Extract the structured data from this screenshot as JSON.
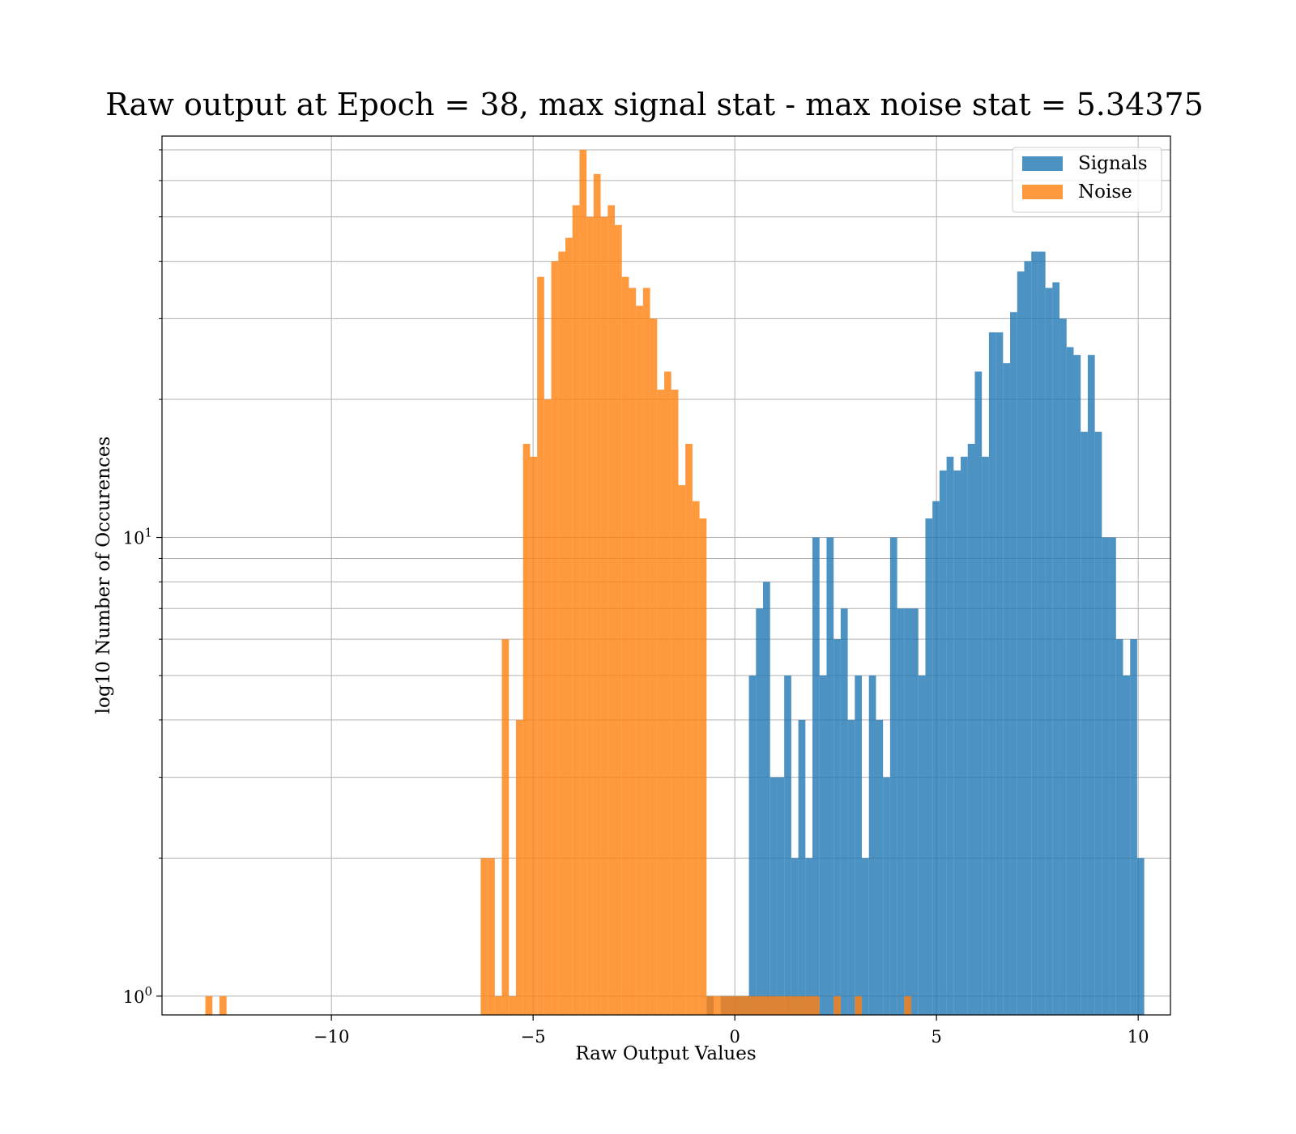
{
  "chart_data": {
    "type": "bar",
    "subtype": "histogram",
    "title": "Raw output at Epoch = 38, max signal stat - max noise stat = 5.34375",
    "xlabel": "Raw Output Values",
    "ylabel": "log10 Number of Occurences",
    "xlim": [
      -14.2,
      10.8
    ],
    "ylim": [
      0.91,
      75
    ],
    "yscale": "log",
    "grid": true,
    "legend_position": "upper right",
    "x_ticks": [
      {
        "value": -10,
        "label": "−10"
      },
      {
        "value": -5,
        "label": "−5"
      },
      {
        "value": 0,
        "label": "0"
      },
      {
        "value": 5,
        "label": "5"
      },
      {
        "value": 10,
        "label": "10"
      }
    ],
    "y_ticks": [
      {
        "value": 1,
        "base": "10",
        "exp": "0"
      },
      {
        "value": 10,
        "base": "10",
        "exp": "1"
      }
    ],
    "series": [
      {
        "name": "Signals",
        "color": "#1f77b4",
        "opacity": 0.8,
        "bin_width": 0.175,
        "bins": [
          [
            -0.7,
            1
          ],
          [
            -0.35,
            1
          ],
          [
            -0.175,
            1
          ],
          [
            0,
            1
          ],
          [
            0.175,
            1
          ],
          [
            0.35,
            5
          ],
          [
            0.525,
            7
          ],
          [
            0.7,
            8
          ],
          [
            0.875,
            3
          ],
          [
            1.05,
            3
          ],
          [
            1.225,
            5
          ],
          [
            1.4,
            2
          ],
          [
            1.575,
            4
          ],
          [
            1.75,
            2
          ],
          [
            1.925,
            10
          ],
          [
            2.1,
            5
          ],
          [
            2.275,
            10
          ],
          [
            2.45,
            6
          ],
          [
            2.625,
            7
          ],
          [
            2.8,
            4
          ],
          [
            2.975,
            5
          ],
          [
            3.15,
            2
          ],
          [
            3.325,
            5
          ],
          [
            3.5,
            4
          ],
          [
            3.675,
            3
          ],
          [
            3.85,
            10
          ],
          [
            4.025,
            7
          ],
          [
            4.2,
            7
          ],
          [
            4.375,
            7
          ],
          [
            4.55,
            5
          ],
          [
            4.725,
            11
          ],
          [
            4.9,
            12
          ],
          [
            5.075,
            14
          ],
          [
            5.25,
            15
          ],
          [
            5.425,
            14
          ],
          [
            5.6,
            15
          ],
          [
            5.775,
            16
          ],
          [
            5.95,
            23
          ],
          [
            6.125,
            15
          ],
          [
            6.3,
            28
          ],
          [
            6.475,
            28
          ],
          [
            6.65,
            24
          ],
          [
            6.825,
            31
          ],
          [
            7.0,
            38
          ],
          [
            7.175,
            40
          ],
          [
            7.35,
            42
          ],
          [
            7.525,
            42
          ],
          [
            7.7,
            35
          ],
          [
            7.875,
            36
          ],
          [
            8.05,
            30
          ],
          [
            8.225,
            26
          ],
          [
            8.4,
            25
          ],
          [
            8.575,
            17
          ],
          [
            8.75,
            25
          ],
          [
            8.925,
            17
          ],
          [
            9.1,
            10
          ],
          [
            9.275,
            10
          ],
          [
            9.45,
            6
          ],
          [
            9.625,
            5
          ],
          [
            9.8,
            6
          ],
          [
            9.975,
            2
          ]
        ]
      },
      {
        "name": "Noise",
        "color": "#ff7f0e",
        "opacity": 0.8,
        "bin_width": 0.175,
        "bins": [
          [
            -13.125,
            1
          ],
          [
            -12.775,
            1
          ],
          [
            -6.3,
            2
          ],
          [
            -6.125,
            2
          ],
          [
            -5.95,
            1
          ],
          [
            -5.775,
            6
          ],
          [
            -5.6,
            1
          ],
          [
            -5.425,
            4
          ],
          [
            -5.25,
            16
          ],
          [
            -5.075,
            15
          ],
          [
            -4.9,
            37
          ],
          [
            -4.725,
            20
          ],
          [
            -4.55,
            40
          ],
          [
            -4.375,
            42
          ],
          [
            -4.2,
            45
          ],
          [
            -4.025,
            53
          ],
          [
            -3.85,
            70
          ],
          [
            -3.675,
            50
          ],
          [
            -3.5,
            62
          ],
          [
            -3.325,
            50
          ],
          [
            -3.15,
            53
          ],
          [
            -2.975,
            48
          ],
          [
            -2.8,
            37
          ],
          [
            -2.625,
            35
          ],
          [
            -2.45,
            32
          ],
          [
            -2.275,
            35
          ],
          [
            -2.1,
            30
          ],
          [
            -1.925,
            21
          ],
          [
            -1.75,
            23
          ],
          [
            -1.575,
            21
          ],
          [
            -1.4,
            13
          ],
          [
            -1.225,
            16
          ],
          [
            -1.05,
            12
          ],
          [
            -0.875,
            11
          ],
          [
            -0.7,
            1
          ],
          [
            -0.525,
            1
          ],
          [
            -0.35,
            1
          ],
          [
            -0.175,
            1
          ],
          [
            0,
            1
          ],
          [
            0.175,
            1
          ],
          [
            0.35,
            1
          ],
          [
            0.525,
            1
          ],
          [
            0.7,
            1
          ],
          [
            0.875,
            1
          ],
          [
            1.05,
            1
          ],
          [
            1.225,
            1
          ],
          [
            1.4,
            1
          ],
          [
            1.575,
            1
          ],
          [
            1.75,
            1
          ],
          [
            1.925,
            1
          ],
          [
            2.45,
            1
          ],
          [
            2.975,
            1
          ],
          [
            4.2,
            1
          ]
        ]
      }
    ]
  }
}
